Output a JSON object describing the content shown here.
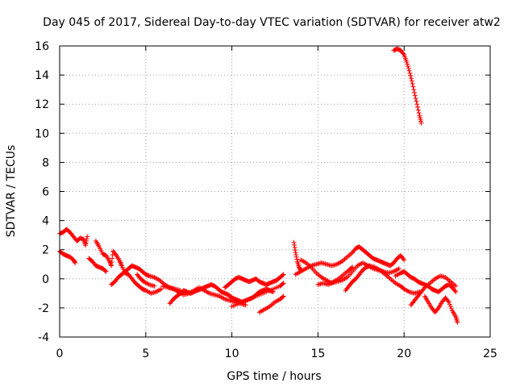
{
  "chart_data": {
    "type": "scatter",
    "title": "Day 045 of 2017, Sidereal Day-to-day VTEC variation (SDTVAR) for receiver atw2",
    "xlabel": "GPS time / hours",
    "ylabel": "SDTVAR / TECUs",
    "xlim": [
      0,
      25
    ],
    "ylim": [
      -4,
      16
    ],
    "xticks": [
      0,
      5,
      10,
      15,
      20,
      25
    ],
    "yticks": [
      -4,
      -2,
      0,
      2,
      4,
      6,
      8,
      10,
      12,
      14,
      16
    ],
    "grid": true,
    "marker": "+",
    "color": "#ff0000",
    "tracks": [
      {
        "name": "track-1",
        "points": [
          [
            0.0,
            3.1
          ],
          [
            0.2,
            3.2
          ],
          [
            0.4,
            3.4
          ],
          [
            0.6,
            3.2
          ],
          [
            0.8,
            2.9
          ],
          [
            1.0,
            2.6
          ],
          [
            1.2,
            2.8
          ],
          [
            1.4,
            2.7
          ],
          [
            1.5,
            2.3
          ],
          [
            1.6,
            2.9
          ]
        ]
      },
      {
        "name": "track-2",
        "points": [
          [
            0.0,
            1.9
          ],
          [
            0.2,
            1.7
          ],
          [
            0.4,
            1.6
          ],
          [
            0.6,
            1.5
          ],
          [
            0.8,
            1.3
          ],
          [
            0.9,
            1.1
          ]
        ]
      },
      {
        "name": "track-3",
        "points": [
          [
            2.1,
            2.6
          ],
          [
            2.3,
            2.2
          ],
          [
            2.5,
            1.7
          ],
          [
            2.7,
            1.6
          ],
          [
            2.9,
            1.2
          ],
          [
            3.0,
            0.9
          ],
          [
            3.1,
            1.9
          ],
          [
            3.3,
            1.6
          ],
          [
            3.5,
            1.2
          ],
          [
            3.6,
            0.9
          ],
          [
            3.8,
            0.4
          ],
          [
            4.0,
            0.3
          ],
          [
            4.2,
            0.0
          ],
          [
            4.4,
            -0.3
          ],
          [
            4.6,
            -0.5
          ],
          [
            4.8,
            -0.7
          ],
          [
            5.0,
            -0.8
          ],
          [
            5.3,
            -1.0
          ],
          [
            5.6,
            -0.9
          ],
          [
            5.9,
            -0.7
          ]
        ]
      },
      {
        "name": "track-4",
        "points": [
          [
            1.7,
            1.4
          ],
          [
            1.9,
            1.2
          ],
          [
            2.1,
            0.9
          ],
          [
            2.3,
            0.8
          ],
          [
            2.5,
            0.7
          ],
          [
            2.7,
            0.5
          ]
        ]
      },
      {
        "name": "track-5",
        "points": [
          [
            3.0,
            -0.4
          ],
          [
            3.2,
            -0.2
          ],
          [
            3.4,
            0.1
          ],
          [
            3.6,
            0.3
          ],
          [
            3.8,
            0.5
          ],
          [
            4.0,
            0.7
          ],
          [
            4.2,
            0.9
          ],
          [
            4.4,
            0.8
          ],
          [
            4.6,
            0.7
          ],
          [
            4.8,
            0.5
          ],
          [
            5.0,
            0.3
          ],
          [
            5.2,
            0.2
          ],
          [
            5.5,
            0.1
          ],
          [
            5.8,
            -0.1
          ],
          [
            6.1,
            -0.4
          ],
          [
            6.4,
            -0.6
          ],
          [
            6.7,
            -0.7
          ],
          [
            7.0,
            -0.8
          ]
        ]
      },
      {
        "name": "track-6",
        "points": [
          [
            4.5,
            0.3
          ],
          [
            4.7,
            0.0
          ],
          [
            4.9,
            -0.2
          ],
          [
            5.2,
            -0.4
          ],
          [
            5.5,
            -0.5
          ]
        ]
      },
      {
        "name": "track-7",
        "points": [
          [
            6.4,
            -1.7
          ],
          [
            6.6,
            -1.4
          ],
          [
            6.8,
            -1.2
          ],
          [
            7.0,
            -1.0
          ],
          [
            7.2,
            -0.8
          ],
          [
            7.4,
            -0.9
          ],
          [
            7.6,
            -1.0
          ],
          [
            7.8,
            -0.9
          ],
          [
            8.0,
            -0.8
          ],
          [
            8.2,
            -0.7
          ],
          [
            8.4,
            -0.6
          ],
          [
            8.6,
            -0.5
          ],
          [
            8.8,
            -0.4
          ],
          [
            9.0,
            -0.5
          ],
          [
            9.2,
            -0.7
          ],
          [
            9.4,
            -0.9
          ],
          [
            9.6,
            -1.0
          ],
          [
            9.8,
            -1.1
          ],
          [
            10.0,
            -1.3
          ],
          [
            10.2,
            -1.4
          ],
          [
            10.4,
            -1.5
          ],
          [
            10.6,
            -1.6
          ],
          [
            10.8,
            -1.5
          ],
          [
            11.0,
            -1.4
          ],
          [
            11.2,
            -1.3
          ],
          [
            11.4,
            -1.1
          ],
          [
            11.6,
            -0.9
          ],
          [
            11.8,
            -0.8
          ],
          [
            12.0,
            -0.7
          ],
          [
            12.2,
            -0.8
          ],
          [
            12.4,
            -0.9
          ]
        ]
      },
      {
        "name": "track-8",
        "points": [
          [
            6.0,
            -0.5
          ],
          [
            6.3,
            -0.6
          ],
          [
            6.6,
            -0.7
          ],
          [
            6.9,
            -0.9
          ],
          [
            7.2,
            -1.1
          ],
          [
            7.5,
            -1.0
          ],
          [
            7.8,
            -0.8
          ],
          [
            8.1,
            -0.6
          ],
          [
            8.4,
            -0.8
          ],
          [
            8.7,
            -1.0
          ],
          [
            9.0,
            -1.1
          ],
          [
            9.3,
            -1.2
          ],
          [
            9.6,
            -1.4
          ],
          [
            9.9,
            -1.5
          ],
          [
            10.2,
            -1.6
          ],
          [
            10.5,
            -1.7
          ],
          [
            10.8,
            -1.8
          ]
        ]
      },
      {
        "name": "track-9",
        "points": [
          [
            9.6,
            -0.6
          ],
          [
            9.8,
            -0.4
          ],
          [
            10.0,
            -0.2
          ],
          [
            10.2,
            0.0
          ],
          [
            10.4,
            0.1
          ],
          [
            10.6,
            0.0
          ],
          [
            10.8,
            -0.1
          ],
          [
            11.0,
            -0.2
          ],
          [
            11.2,
            -0.1
          ],
          [
            11.4,
            0.0
          ],
          [
            11.6,
            -0.2
          ],
          [
            11.8,
            -0.3
          ],
          [
            12.0,
            -0.4
          ],
          [
            12.2,
            -0.3
          ],
          [
            12.4,
            -0.2
          ],
          [
            12.6,
            -0.1
          ],
          [
            12.8,
            0.1
          ],
          [
            13.0,
            0.3
          ]
        ]
      },
      {
        "name": "track-10",
        "points": [
          [
            11.6,
            -2.3
          ],
          [
            11.9,
            -2.1
          ],
          [
            12.2,
            -1.9
          ],
          [
            12.5,
            -1.6
          ],
          [
            12.8,
            -1.4
          ],
          [
            13.0,
            -1.2
          ]
        ]
      },
      {
        "name": "track-11",
        "points": [
          [
            10.0,
            -1.9
          ],
          [
            10.4,
            -1.7
          ],
          [
            10.8,
            -1.5
          ],
          [
            11.2,
            -1.3
          ],
          [
            11.6,
            -1.1
          ],
          [
            12.0,
            -0.9
          ],
          [
            12.4,
            -0.7
          ],
          [
            12.8,
            -0.5
          ],
          [
            13.0,
            -0.3
          ]
        ]
      },
      {
        "name": "track-12",
        "points": [
          [
            13.6,
            2.5
          ],
          [
            13.7,
            1.8
          ],
          [
            13.8,
            1.2
          ],
          [
            13.9,
            0.8
          ],
          [
            14.0,
            0.6
          ]
        ]
      },
      {
        "name": "track-13",
        "points": [
          [
            13.7,
            0.3
          ],
          [
            14.0,
            0.5
          ],
          [
            14.3,
            0.7
          ],
          [
            14.6,
            0.9
          ],
          [
            14.9,
            1.0
          ],
          [
            15.2,
            1.1
          ],
          [
            15.5,
            1.0
          ],
          [
            15.8,
            0.9
          ],
          [
            16.1,
            1.0
          ],
          [
            16.4,
            1.2
          ],
          [
            16.7,
            1.5
          ],
          [
            17.0,
            1.8
          ],
          [
            17.2,
            2.1
          ],
          [
            17.4,
            2.2
          ],
          [
            17.6,
            2.0
          ],
          [
            17.8,
            1.8
          ],
          [
            18.0,
            1.6
          ],
          [
            18.2,
            1.4
          ],
          [
            18.4,
            1.3
          ],
          [
            18.6,
            1.2
          ],
          [
            18.8,
            1.1
          ],
          [
            19.0,
            1.0
          ],
          [
            19.2,
            0.9
          ],
          [
            19.4,
            1.1
          ],
          [
            19.6,
            1.4
          ],
          [
            19.8,
            1.6
          ],
          [
            20.0,
            1.3
          ]
        ]
      },
      {
        "name": "track-14",
        "points": [
          [
            14.0,
            1.3
          ],
          [
            14.3,
            1.1
          ],
          [
            14.6,
            0.8
          ],
          [
            14.9,
            0.4
          ],
          [
            15.2,
            0.1
          ],
          [
            15.5,
            -0.1
          ],
          [
            15.8,
            -0.3
          ],
          [
            16.1,
            -0.2
          ],
          [
            16.4,
            -0.1
          ],
          [
            16.7,
            0.1
          ],
          [
            17.0,
            0.5
          ],
          [
            17.3,
            0.9
          ],
          [
            17.6,
            1.1
          ],
          [
            17.9,
            0.9
          ],
          [
            18.2,
            0.7
          ],
          [
            18.5,
            0.6
          ],
          [
            18.8,
            0.5
          ],
          [
            19.1,
            0.4
          ],
          [
            19.4,
            0.5
          ],
          [
            19.7,
            0.7
          ]
        ]
      },
      {
        "name": "track-15",
        "points": [
          [
            15.0,
            -0.4
          ],
          [
            15.3,
            -0.3
          ],
          [
            15.6,
            -0.4
          ],
          [
            15.9,
            -0.2
          ],
          [
            16.2,
            0.0
          ],
          [
            16.5,
            0.3
          ],
          [
            16.8,
            0.6
          ],
          [
            17.0,
            0.8
          ]
        ]
      },
      {
        "name": "track-16",
        "points": [
          [
            16.6,
            -0.8
          ],
          [
            16.8,
            -0.5
          ],
          [
            17.0,
            -0.2
          ],
          [
            17.2,
            0.0
          ],
          [
            17.4,
            0.3
          ],
          [
            17.6,
            0.6
          ],
          [
            17.8,
            0.8
          ],
          [
            18.0,
            0.9
          ],
          [
            18.3,
            0.8
          ],
          [
            18.6,
            0.6
          ],
          [
            18.9,
            0.3
          ],
          [
            19.2,
            0.0
          ],
          [
            19.5,
            -0.3
          ],
          [
            19.8,
            -0.5
          ],
          [
            20.0,
            -0.7
          ],
          [
            20.3,
            -0.9
          ],
          [
            20.6,
            -1.0
          ],
          [
            20.9,
            -0.9
          ]
        ]
      },
      {
        "name": "track-17",
        "points": [
          [
            19.5,
            0.2
          ],
          [
            19.8,
            0.4
          ],
          [
            20.0,
            0.5
          ],
          [
            20.2,
            0.3
          ],
          [
            20.4,
            0.1
          ],
          [
            20.6,
            0.0
          ],
          [
            20.8,
            -0.2
          ],
          [
            21.0,
            -0.3
          ],
          [
            21.2,
            -0.4
          ],
          [
            21.4,
            -0.5
          ],
          [
            21.6,
            -0.7
          ],
          [
            21.8,
            -0.8
          ],
          [
            22.0,
            -0.9
          ],
          [
            22.2,
            -0.7
          ],
          [
            22.4,
            -0.5
          ],
          [
            22.6,
            -0.4
          ],
          [
            22.8,
            -0.6
          ],
          [
            23.0,
            -0.9
          ]
        ]
      },
      {
        "name": "track-18",
        "points": [
          [
            21.2,
            -1.2
          ],
          [
            21.4,
            -1.6
          ],
          [
            21.6,
            -2.0
          ],
          [
            21.8,
            -2.3
          ],
          [
            22.0,
            -2.0
          ],
          [
            22.2,
            -1.6
          ],
          [
            22.4,
            -1.3
          ],
          [
            22.6,
            -1.6
          ],
          [
            22.8,
            -2.2
          ],
          [
            23.0,
            -2.6
          ],
          [
            23.1,
            -3.0
          ]
        ]
      },
      {
        "name": "track-19",
        "points": [
          [
            20.4,
            -1.8
          ],
          [
            20.6,
            -1.5
          ],
          [
            20.8,
            -1.2
          ],
          [
            21.0,
            -0.9
          ],
          [
            21.2,
            -0.6
          ],
          [
            21.5,
            -0.3
          ],
          [
            21.8,
            0.0
          ],
          [
            22.1,
            0.2
          ],
          [
            22.4,
            0.1
          ],
          [
            22.7,
            -0.2
          ],
          [
            23.0,
            -0.5
          ]
        ]
      },
      {
        "name": "track-20",
        "points": [
          [
            19.4,
            15.7
          ],
          [
            19.6,
            15.8
          ],
          [
            19.8,
            15.7
          ],
          [
            20.0,
            15.4
          ],
          [
            20.15,
            14.9
          ],
          [
            20.3,
            14.3
          ],
          [
            20.45,
            13.6
          ],
          [
            20.6,
            12.8
          ],
          [
            20.75,
            12.0
          ],
          [
            20.9,
            11.2
          ],
          [
            21.0,
            10.7
          ]
        ]
      }
    ]
  }
}
